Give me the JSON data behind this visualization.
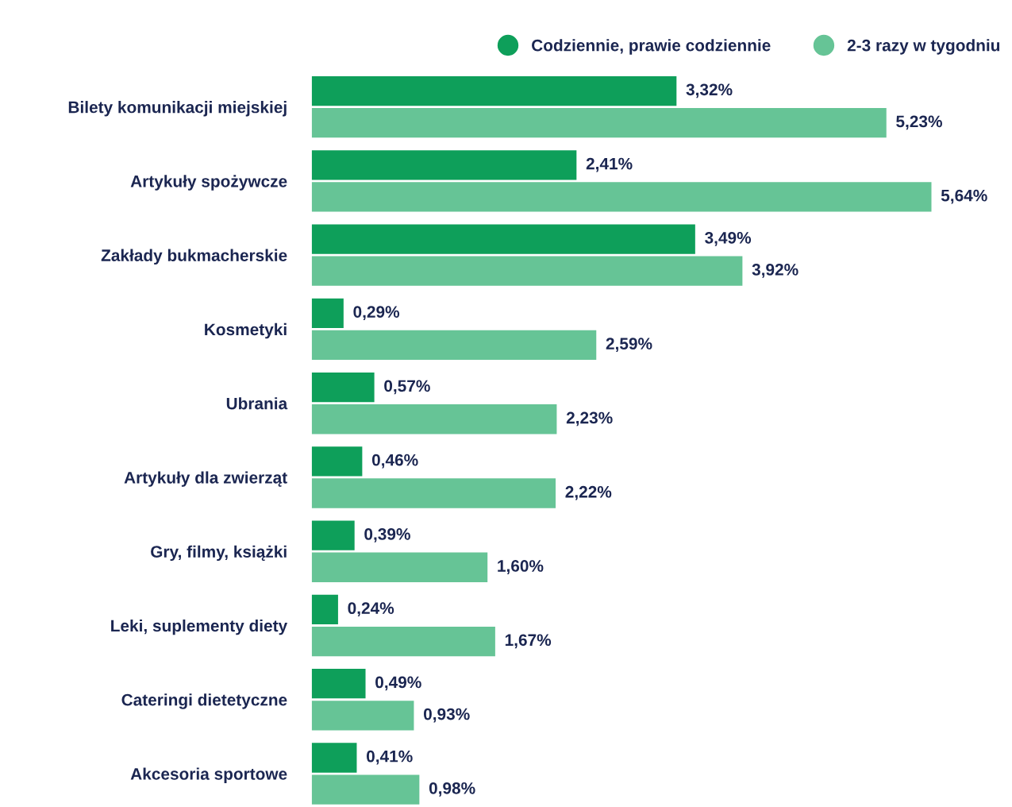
{
  "chart_data": {
    "type": "bar",
    "orientation": "horizontal",
    "categories": [
      "Bilety komunikacji miejskiej",
      "Artykuły spożywcze",
      "Zakłady bukmacherskie",
      "Kosmetyki",
      "Ubrania",
      "Artykuły dla zwierząt",
      "Gry, filmy, książki",
      "Leki, suplementy diety",
      "Cateringi dietetyczne",
      "Akcesoria sportowe"
    ],
    "series": [
      {
        "name": "Codziennie, prawie codziennie",
        "color": "#0e9f5a",
        "values": [
          3.32,
          2.41,
          3.49,
          0.29,
          0.57,
          0.46,
          0.39,
          0.24,
          0.49,
          0.41
        ],
        "value_labels": [
          "3,32%",
          "2,41%",
          "3,49%",
          "0,29%",
          "0,57%",
          "0,46%",
          "0,39%",
          "0,24%",
          "0,49%",
          "0,41%"
        ]
      },
      {
        "name": "2-3 razy w tygodniu",
        "color": "#66c496",
        "values": [
          5.23,
          5.64,
          3.92,
          2.59,
          2.23,
          2.22,
          1.6,
          1.67,
          0.93,
          0.98
        ],
        "value_labels": [
          "5,23%",
          "5,64%",
          "3,92%",
          "2,59%",
          "2,23%",
          "2,22%",
          "1,60%",
          "1,67%",
          "0,93%",
          "0,98%"
        ]
      }
    ],
    "legend": "top",
    "marker": "circle",
    "grid": false
  }
}
